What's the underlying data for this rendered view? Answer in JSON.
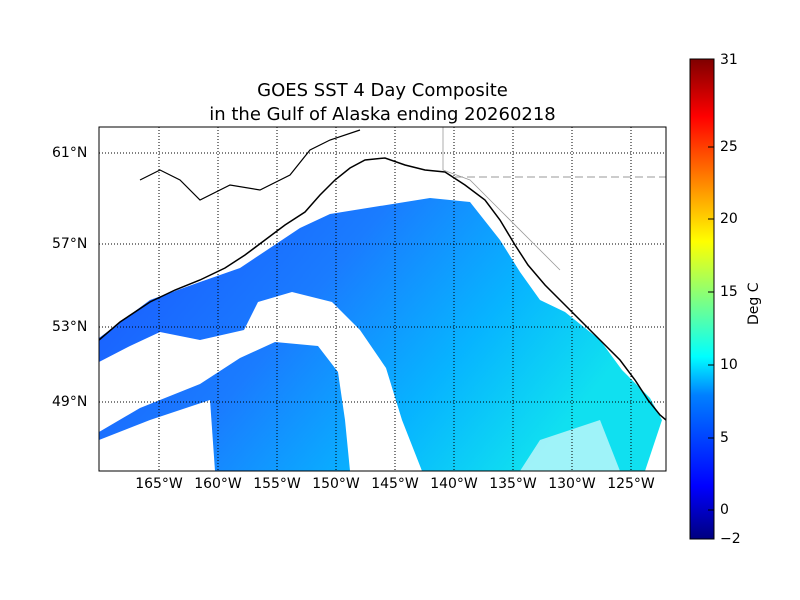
{
  "title": {
    "line1": "GOES SST 4 Day Composite",
    "line2": "in the Gulf of Alaska ending 20260218"
  },
  "map": {
    "lat_ticks": [
      "61°N",
      "57°N",
      "53°N",
      "49°N"
    ],
    "lon_ticks": [
      "165°W",
      "160°W",
      "155°W",
      "150°W",
      "145°W",
      "140°W",
      "135°W",
      "130°W",
      "125°W"
    ]
  },
  "colorbar": {
    "label": "Deg C",
    "min": -2,
    "max": 31,
    "ticks": [
      "31",
      "25",
      "20",
      "15",
      "10",
      "5",
      "0",
      "−2"
    ],
    "colormap": "jet",
    "colors": [
      "#00007f",
      "#0000ff",
      "#007fff",
      "#00ffff",
      "#7fff7f",
      "#ffff00",
      "#ff7f00",
      "#ff0000",
      "#7f0000"
    ]
  }
}
